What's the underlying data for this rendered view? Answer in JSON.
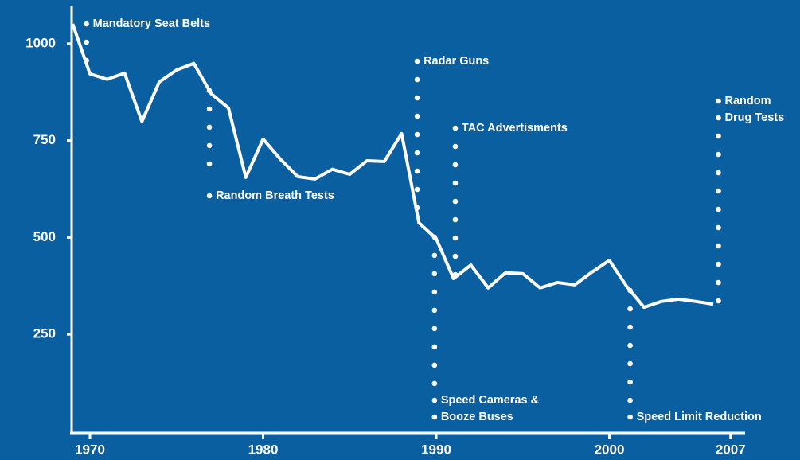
{
  "chart_data": {
    "type": "line",
    "x": [
      1969,
      1970,
      1971,
      1972,
      1973,
      1974,
      1975,
      1976,
      1977,
      1978,
      1979,
      1980,
      1981,
      1982,
      1983,
      1984,
      1985,
      1986,
      1987,
      1988,
      1989,
      1990,
      1991,
      1992,
      1993,
      1994,
      1995,
      1996,
      1997,
      1998,
      1999,
      2000,
      2001,
      2002,
      2003,
      2004,
      2005,
      2006
    ],
    "series": [
      {
        "color": "#ffffff",
        "values": [
          1051,
          922,
          908,
          924,
          799,
          901,
          932,
          949,
          871,
          834,
          655,
          754,
          702,
          657,
          651,
          676,
          663,
          698,
          696,
          768,
          538,
          497,
          394,
          429,
          370,
          409,
          407,
          370,
          384,
          378,
          411,
          441,
          374,
          320,
          335,
          341,
          335,
          328
        ]
      }
    ],
    "xlim": [
      1969,
      2008
    ],
    "xticks": [
      1970,
      1980,
      1990,
      2000,
      2007
    ],
    "ylim": [
      0,
      1090
    ],
    "yticks": [
      250,
      500,
      750,
      1000
    ],
    "annotations": [
      {
        "lines": [
          "Mandatory Seat Belts"
        ],
        "x": 1969.8
      },
      {
        "lines": [
          "Random Breath Tests"
        ],
        "x": 1976.9
      },
      {
        "lines": [
          "Radar Guns"
        ],
        "x": 1988.9
      },
      {
        "lines": [
          "TAC Advertisments"
        ],
        "x": 1991.1
      },
      {
        "lines": [
          "Speed Cameras &",
          "Booze Buses"
        ],
        "x": 1989.9
      },
      {
        "lines": [
          "Speed Limit Reduction"
        ],
        "x": 2001.2
      },
      {
        "lines": [
          "Random",
          "Drug Tests"
        ],
        "x": 2006.3
      }
    ]
  }
}
